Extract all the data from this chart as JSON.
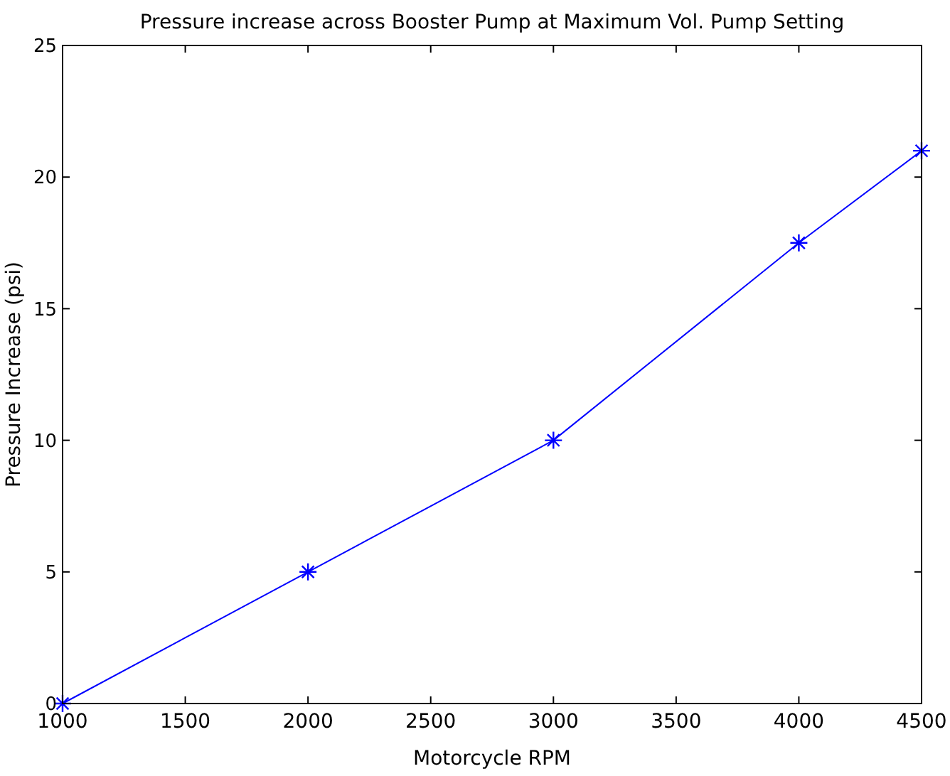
{
  "chart_data": {
    "type": "line",
    "title": "Pressure increase across Booster Pump at Maximum Vol. Pump Setting",
    "xlabel": "Motorcycle RPM",
    "ylabel": "Pressure Increase (psi)",
    "x": [
      1000,
      2000,
      3000,
      4000,
      4500
    ],
    "series": [
      {
        "color": "#0000ff",
        "values": [
          0,
          5,
          10,
          17.5,
          21
        ]
      }
    ],
    "xlim": [
      1000,
      4500
    ],
    "xticks": [
      1000,
      1500,
      2000,
      2500,
      3000,
      3500,
      4000,
      4500
    ],
    "ylim": [
      0,
      25
    ],
    "yticks": [
      0,
      5,
      10,
      15,
      20,
      25
    ],
    "grid": false,
    "marker": "cross",
    "line_style": "solid"
  }
}
